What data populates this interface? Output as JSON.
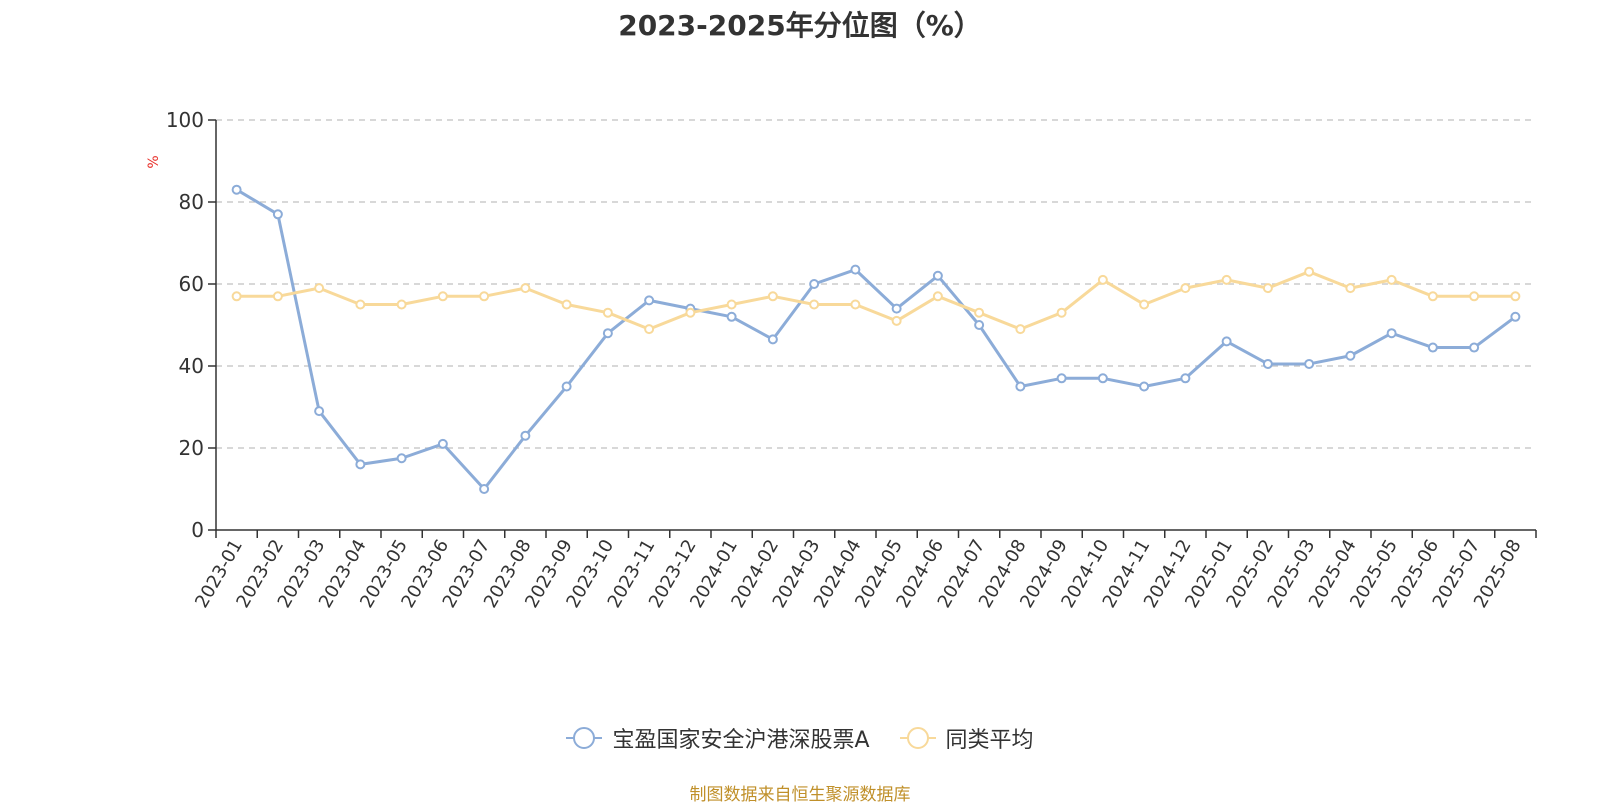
{
  "title": "2023-2025年分位图（%）",
  "source": "制图数据来自恒生聚源数据库",
  "colors": {
    "series1": "#8cacd8",
    "series2": "#f8d99a",
    "unit": "#e8302a",
    "grid": "#cccccc",
    "axis": "#333333"
  },
  "chart_data": {
    "type": "line",
    "ylabel": "%",
    "ylim": [
      0,
      100
    ],
    "yticks": [
      0,
      20,
      40,
      60,
      80,
      100
    ],
    "grid": true,
    "legend_position": "bottom",
    "categories": [
      "2023-01",
      "2023-02",
      "2023-03",
      "2023-04",
      "2023-05",
      "2023-06",
      "2023-07",
      "2023-08",
      "2023-09",
      "2023-10",
      "2023-11",
      "2023-12",
      "2024-01",
      "2024-02",
      "2024-03",
      "2024-04",
      "2024-05",
      "2024-06",
      "2024-07",
      "2024-08",
      "2024-09",
      "2024-10",
      "2024-11",
      "2024-12",
      "2025-01",
      "2025-02",
      "2025-03",
      "2025-04",
      "2025-05",
      "2025-06",
      "2025-07",
      "2025-08"
    ],
    "series": [
      {
        "name": "宝盈国家安全沪港深股票A",
        "values": [
          83,
          77,
          29,
          16,
          17.5,
          21,
          10,
          23,
          35,
          48,
          56,
          54,
          52,
          46.5,
          60,
          63.5,
          54,
          62,
          50,
          35,
          37,
          37,
          35,
          37,
          46,
          40.5,
          40.5,
          42.5,
          48,
          44.5,
          44.5,
          52
        ]
      },
      {
        "name": "同类平均",
        "values": [
          57,
          57,
          59,
          55,
          55,
          57,
          57,
          59,
          55,
          53,
          49,
          53,
          55,
          57,
          55,
          55,
          51,
          57,
          53,
          49,
          53,
          61,
          55,
          59,
          61,
          59,
          63,
          59,
          61,
          57,
          57,
          57
        ]
      }
    ]
  }
}
